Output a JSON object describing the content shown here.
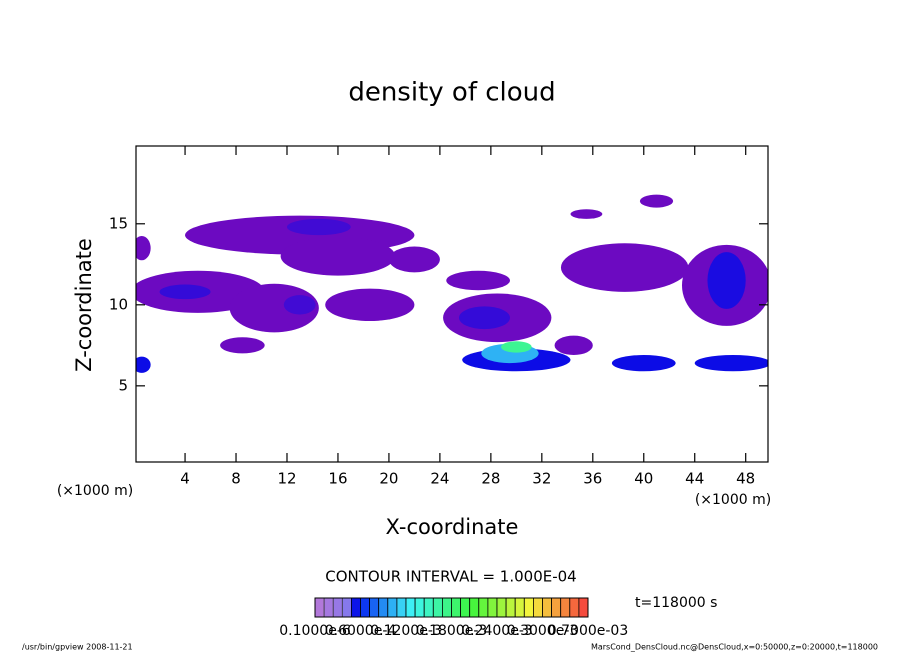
{
  "chart_data": {
    "type": "contour",
    "title": "density of cloud",
    "x_label": "X-coordinate",
    "y_label": "Z-coordinate",
    "x_unit": "(×1000 m)",
    "y_unit": "(×1000 m)",
    "xlim": [
      0.15,
      49.75
    ],
    "ylim": [
      0.3,
      19.8
    ],
    "xticks": [
      4,
      8,
      12,
      16,
      20,
      24,
      28,
      32,
      36,
      40,
      44,
      48
    ],
    "yticks": [
      5,
      10,
      15
    ],
    "contour_interval": "CONTOUR INTERVAL = 1.000E-04",
    "time_label": "t=118000 s",
    "colorbar": {
      "min": 0,
      "max": 0.0007,
      "labels": [
        "0.1000e-6",
        "0.6000e-4",
        "0.1200e-3",
        "0.1800e-3",
        "0.2400e-3",
        "0.3000e-3",
        "0.7000e-03"
      ]
    },
    "regions": [
      {
        "x": 5,
        "z": 10.8,
        "w": 10.5,
        "h": 2.6,
        "value": 2e-05
      },
      {
        "x": 4,
        "z": 10.8,
        "w": 4,
        "h": 0.9,
        "value": 7e-05
      },
      {
        "x": 13,
        "z": 14.3,
        "w": 18,
        "h": 2.4,
        "value": 2e-05
      },
      {
        "x": 16,
        "z": 13,
        "w": 9,
        "h": 2.4,
        "value": 2e-05
      },
      {
        "x": 14.5,
        "z": 14.8,
        "w": 5,
        "h": 1,
        "value": 6e-05
      },
      {
        "x": 22,
        "z": 12.8,
        "w": 4,
        "h": 1.6,
        "value": 2e-05
      },
      {
        "x": 11,
        "z": 9.8,
        "w": 7,
        "h": 3,
        "value": 2e-05
      },
      {
        "x": 13,
        "z": 10,
        "w": 2.5,
        "h": 1.2,
        "value": 6e-05
      },
      {
        "x": 18.5,
        "z": 10,
        "w": 7,
        "h": 2,
        "value": 2e-05
      },
      {
        "x": 8.5,
        "z": 7.5,
        "w": 3.5,
        "h": 1,
        "value": 2e-05
      },
      {
        "x": 28.5,
        "z": 9.2,
        "w": 8.5,
        "h": 3,
        "value": 2e-05
      },
      {
        "x": 27.5,
        "z": 9.2,
        "w": 4,
        "h": 1.4,
        "value": 7e-05
      },
      {
        "x": 27,
        "z": 11.5,
        "w": 5,
        "h": 1.2,
        "value": 2e-05
      },
      {
        "x": 30,
        "z": 6.6,
        "w": 8.5,
        "h": 1.4,
        "value": 0.0001
      },
      {
        "x": 29.5,
        "z": 7,
        "w": 4.5,
        "h": 1.2,
        "value": 0.0002
      },
      {
        "x": 30,
        "z": 7.4,
        "w": 2.4,
        "h": 0.7,
        "value": 0.00033
      },
      {
        "x": 38.5,
        "z": 12.3,
        "w": 10,
        "h": 3,
        "value": 2e-05
      },
      {
        "x": 35.5,
        "z": 15.6,
        "w": 2.5,
        "h": 0.6,
        "value": 2e-05
      },
      {
        "x": 41,
        "z": 16.4,
        "w": 2.6,
        "h": 0.8,
        "value": 2e-05
      },
      {
        "x": 34.5,
        "z": 7.5,
        "w": 3,
        "h": 1.2,
        "value": 2e-05
      },
      {
        "x": 40,
        "z": 6.4,
        "w": 5,
        "h": 1,
        "value": 0.0001
      },
      {
        "x": 47,
        "z": 6.4,
        "w": 6,
        "h": 1,
        "value": 0.0001
      },
      {
        "x": 46.5,
        "z": 11.2,
        "w": 7,
        "h": 5,
        "value": 2e-05
      },
      {
        "x": 46.5,
        "z": 11.5,
        "w": 3,
        "h": 3.5,
        "value": 9e-05
      },
      {
        "x": 0.6,
        "z": 6.3,
        "w": 1.4,
        "h": 1,
        "value": 0.0001
      },
      {
        "x": 0.6,
        "z": 13.5,
        "w": 1.4,
        "h": 1.5,
        "value": 2e-05
      }
    ],
    "footer_left": "/usr/bin/gpview  2008-11-21",
    "footer_right": "MarsCond_DensCloud.nc@DensCloud,x=0:50000,z=0:20000,t=118000"
  }
}
